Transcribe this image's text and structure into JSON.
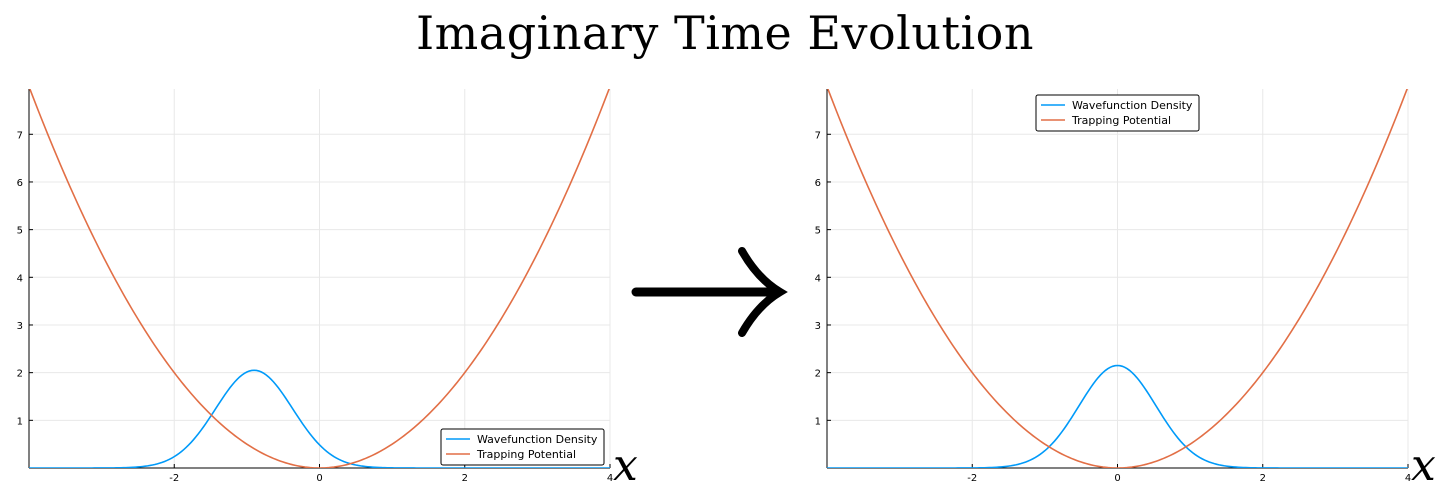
{
  "title": "Imaginary Time Evolution",
  "arrow_icon": "right-arrow-icon",
  "colors": {
    "density": "#009af9",
    "potential": "#e26f46",
    "grid": "#e8e8e8",
    "axis": "#000000"
  },
  "chart_data": [
    {
      "type": "line",
      "xlabel": "x",
      "xlim": [
        -4,
        4
      ],
      "ylim": [
        0,
        7.95
      ],
      "xticks": [
        -2,
        0,
        2,
        4
      ],
      "yticks": [
        1,
        2,
        3,
        4,
        5,
        6,
        7
      ],
      "grid": true,
      "legend_position": "bottom-right",
      "series": [
        {
          "name": "Wavefunction Density",
          "function": "gaussian",
          "center": -0.9,
          "peak": 2.05,
          "width": 0.75,
          "x": [
            -4,
            -3,
            -2,
            -1.5,
            -0.9,
            -0.3,
            0,
            0.5,
            1,
            2,
            4
          ],
          "y": [
            0.0,
            0.02,
            0.5,
            1.25,
            2.05,
            1.4,
            0.95,
            0.45,
            0.15,
            0.0,
            0.0
          ]
        },
        {
          "name": "Trapping Potential",
          "function": "parabola",
          "center": 0,
          "coef": 0.5,
          "x": [
            -4,
            -3,
            -2,
            -1,
            0,
            1,
            2,
            3,
            4
          ],
          "y": [
            8.0,
            4.5,
            2.0,
            0.5,
            0.0,
            0.5,
            2.0,
            4.5,
            8.0
          ]
        }
      ]
    },
    {
      "type": "line",
      "xlabel": "x",
      "xlim": [
        -4,
        4
      ],
      "ylim": [
        0,
        7.95
      ],
      "xticks": [
        -2,
        0,
        2,
        4
      ],
      "yticks": [
        1,
        2,
        3,
        4,
        5,
        6,
        7
      ],
      "grid": true,
      "legend_position": "top",
      "series": [
        {
          "name": "Wavefunction Density",
          "function": "gaussian",
          "center": 0,
          "peak": 2.15,
          "width": 0.75,
          "x": [
            -4,
            -3,
            -2,
            -1,
            -0.5,
            0,
            0.5,
            1,
            2,
            3,
            4
          ],
          "y": [
            0.0,
            0.0,
            0.06,
            0.9,
            1.7,
            2.15,
            1.7,
            0.9,
            0.06,
            0.0,
            0.0
          ]
        },
        {
          "name": "Trapping Potential",
          "function": "parabola",
          "center": 0,
          "coef": 0.5,
          "x": [
            -4,
            -3,
            -2,
            -1,
            0,
            1,
            2,
            3,
            4
          ],
          "y": [
            8.0,
            4.5,
            2.0,
            0.5,
            0.0,
            0.5,
            2.0,
            4.5,
            8.0
          ]
        }
      ]
    }
  ]
}
